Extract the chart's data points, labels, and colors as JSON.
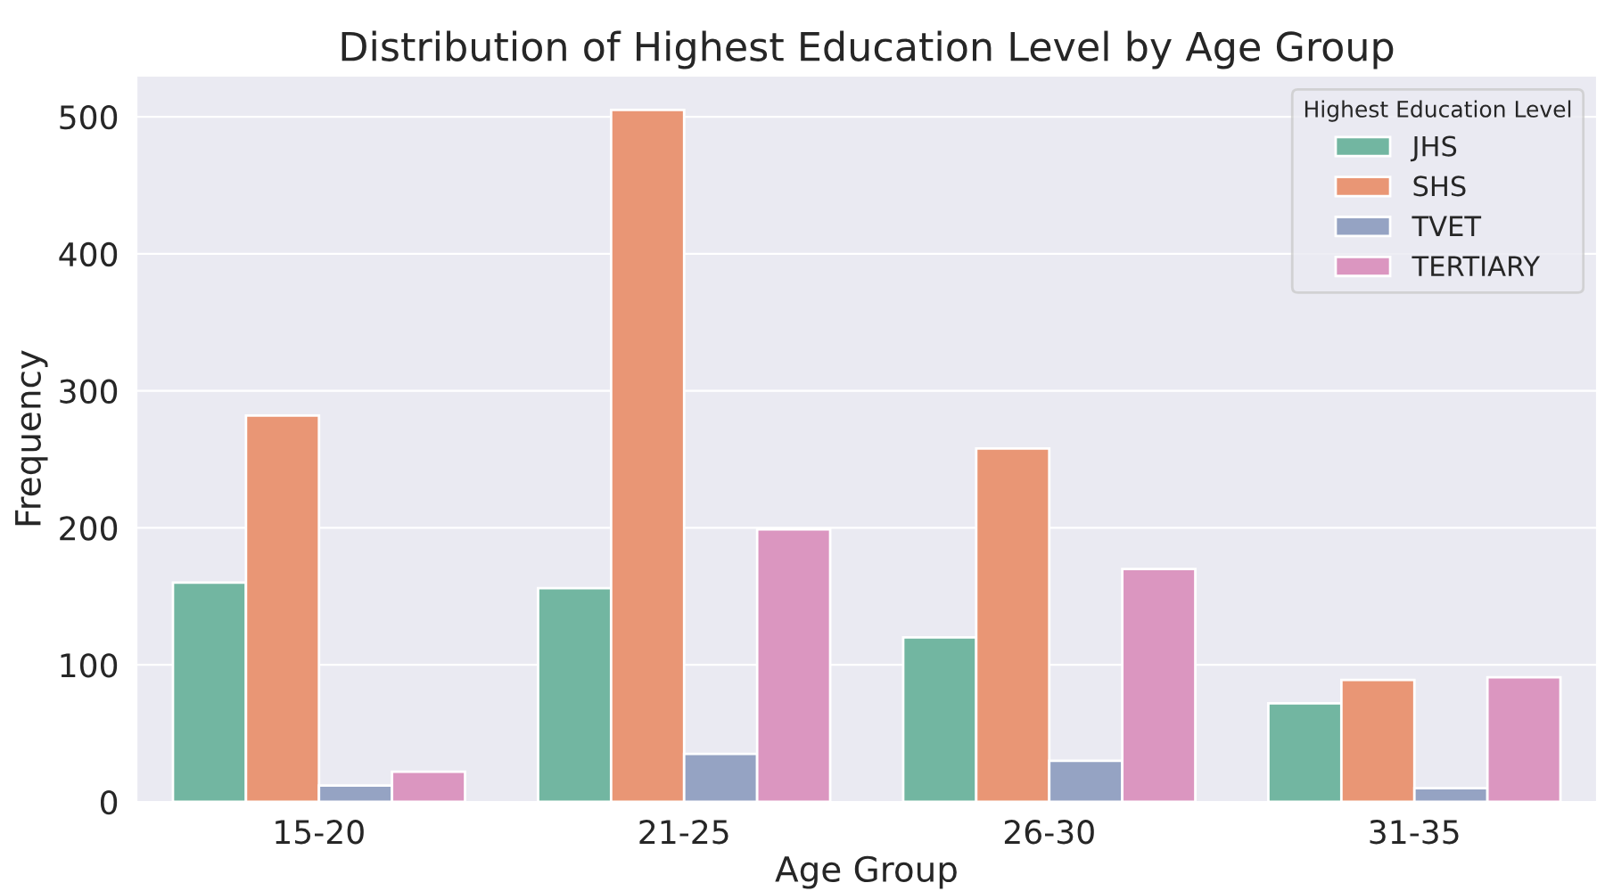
{
  "chart_data": {
    "type": "bar",
    "title": "Distribution of Highest Education Level by Age Group",
    "xlabel": "Age Group",
    "ylabel": "Frequency",
    "legend_title": "Highest Education Level",
    "categories": [
      "15-20",
      "21-25",
      "26-30",
      "31-35"
    ],
    "series": [
      {
        "name": "JHS",
        "color": "#72b6a1",
        "values": [
          160,
          156,
          120,
          72
        ]
      },
      {
        "name": "SHS",
        "color": "#e99675",
        "values": [
          282,
          505,
          258,
          89
        ]
      },
      {
        "name": "TVET",
        "color": "#95a3c3",
        "values": [
          12,
          35,
          30,
          10
        ]
      },
      {
        "name": "TERTIARY",
        "color": "#db96c0",
        "values": [
          22,
          199,
          170,
          91
        ]
      }
    ],
    "ylim": [
      0,
      530
    ],
    "yticks": [
      0,
      100,
      200,
      300,
      400,
      500
    ],
    "grid": "y",
    "legend": "top right"
  }
}
